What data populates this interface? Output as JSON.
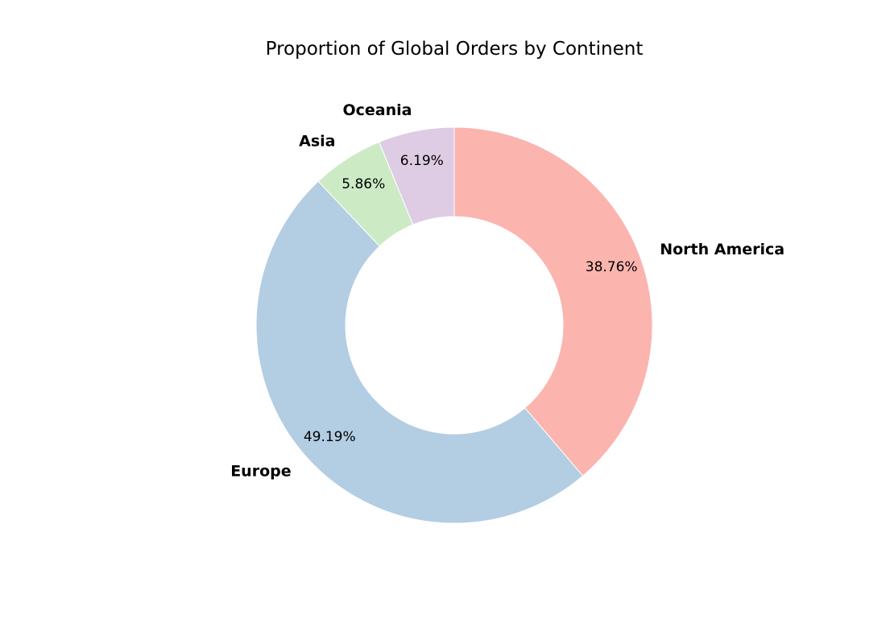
{
  "chart_data": {
    "type": "pie",
    "variant": "donut",
    "title": "Proportion of Global Orders by Continent",
    "start": "top, clockwise",
    "slices": [
      {
        "label": "North America",
        "value": 38.76,
        "pct_label": "38.76%",
        "color": "#fbb4ae"
      },
      {
        "label": "Europe",
        "value": 49.19,
        "pct_label": "49.19%",
        "color": "#b3cde3"
      },
      {
        "label": "Asia",
        "value": 5.86,
        "pct_label": "5.86%",
        "color": "#ccebc5"
      },
      {
        "label": "Oceania",
        "value": 6.19,
        "pct_label": "6.19%",
        "color": "#decbe4"
      }
    ],
    "legend": "none",
    "grid": false
  }
}
